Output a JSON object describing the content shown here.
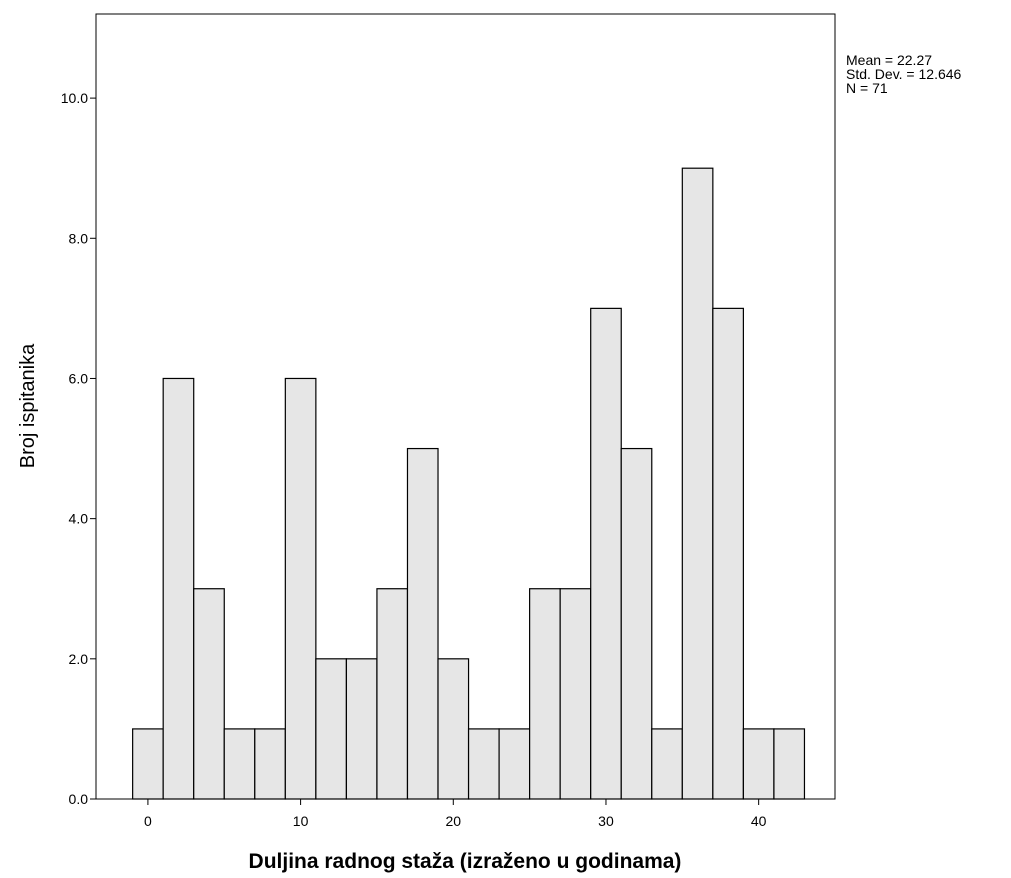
{
  "chart_data": {
    "type": "bar",
    "subtype": "histogram",
    "title": "",
    "xlabel": "Duljina radnog staža (izraženo u godinama)",
    "ylabel": "Broj ispitanika",
    "bin_width": 2,
    "bins": [
      {
        "x_start": -1,
        "x_end": 1,
        "count": 1
      },
      {
        "x_start": 1,
        "x_end": 3,
        "count": 6
      },
      {
        "x_start": 3,
        "x_end": 5,
        "count": 3
      },
      {
        "x_start": 5,
        "x_end": 7,
        "count": 1
      },
      {
        "x_start": 7,
        "x_end": 9,
        "count": 1
      },
      {
        "x_start": 9,
        "x_end": 11,
        "count": 6
      },
      {
        "x_start": 11,
        "x_end": 13,
        "count": 2
      },
      {
        "x_start": 13,
        "x_end": 15,
        "count": 2
      },
      {
        "x_start": 15,
        "x_end": 17,
        "count": 3
      },
      {
        "x_start": 17,
        "x_end": 19,
        "count": 5
      },
      {
        "x_start": 19,
        "x_end": 21,
        "count": 2
      },
      {
        "x_start": 21,
        "x_end": 23,
        "count": 1
      },
      {
        "x_start": 23,
        "x_end": 25,
        "count": 1
      },
      {
        "x_start": 25,
        "x_end": 27,
        "count": 3
      },
      {
        "x_start": 27,
        "x_end": 29,
        "count": 3
      },
      {
        "x_start": 29,
        "x_end": 31,
        "count": 7
      },
      {
        "x_start": 31,
        "x_end": 33,
        "count": 5
      },
      {
        "x_start": 33,
        "x_end": 35,
        "count": 1
      },
      {
        "x_start": 35,
        "x_end": 37,
        "count": 9
      },
      {
        "x_start": 37,
        "x_end": 39,
        "count": 7
      },
      {
        "x_start": 39,
        "x_end": 41,
        "count": 1
      },
      {
        "x_start": 41,
        "x_end": 43,
        "count": 1
      }
    ],
    "xlim": [
      -3.4,
      45
    ],
    "ylim": [
      0,
      11.2
    ],
    "x_ticks": [
      0,
      10,
      20,
      30,
      40
    ],
    "x_tick_labels": [
      "0",
      "10",
      "20",
      "30",
      "40"
    ],
    "y_ticks": [
      0,
      2,
      4,
      6,
      8,
      10
    ],
    "y_tick_labels": [
      "0.0",
      "2.0",
      "4.0",
      "6.0",
      "8.0",
      "10.0"
    ],
    "grid": false,
    "bar_color": "#e6e6e6",
    "bar_edge_color": "#000000"
  },
  "stats": {
    "mean": "Mean = 22.27",
    "std_dev": "Std. Dev. = 12.646",
    "n": "N = 71"
  }
}
